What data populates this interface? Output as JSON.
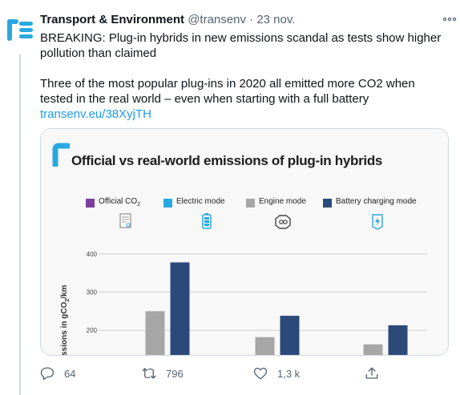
{
  "tweet": {
    "display_name": "Transport & Environment",
    "handle": "@transenv",
    "separator": "·",
    "date": "23 nov.",
    "more_icon": "more-horizontal-icon",
    "text_line1": "BREAKING: Plug-in hybrids in new emissions scandal as tests show higher pollution than claimed",
    "text_line2": "Three of the most popular plug-ins in 2020 all emitted more CO2 when tested in the real world – even when starting with a full battery",
    "link": "transenv.eu/38XyjTH",
    "link_color": "#1d9bf0"
  },
  "media": {
    "title": "Official vs real-world emissions of plug-in hybrids",
    "legend": [
      {
        "label": "Official CO",
        "sub": "2",
        "color": "#7b3fa0",
        "icon": "document-icon"
      },
      {
        "label": "Electric mode",
        "sub": "",
        "color": "#29a8e0",
        "icon": "battery-icon"
      },
      {
        "label": "Engine mode",
        "sub": "",
        "color": "#a6a6a6",
        "icon": "engine-icon"
      },
      {
        "label": "Battery charging mode",
        "sub": "",
        "color": "#2b4a7a",
        "icon": "charging-icon"
      }
    ],
    "ylabel_prefix": "ssions in gCO",
    "ylabel_sub": "2",
    "ylabel_suffix": "/km"
  },
  "chart_data": {
    "type": "bar",
    "title": "Official vs real-world emissions of plug-in hybrids",
    "ylabel": "ssions in gCO2/km",
    "yticks": [
      200,
      300,
      400
    ],
    "ylim": [
      150,
      420
    ],
    "categories": [
      "",
      "",
      ""
    ],
    "series": [
      {
        "name": "Engine mode",
        "color": "#a6a6a6",
        "values": [
          250,
          182,
          163
        ]
      },
      {
        "name": "Battery charging mode",
        "color": "#2b4a7a",
        "values": [
          378,
          238,
          213
        ]
      }
    ]
  },
  "actions": {
    "reply": {
      "icon": "reply-icon",
      "count": "64"
    },
    "retweet": {
      "icon": "retweet-icon",
      "count": "796"
    },
    "like": {
      "icon": "heart-icon",
      "count": "1,3 k"
    },
    "share": {
      "icon": "share-icon",
      "count": ""
    }
  }
}
